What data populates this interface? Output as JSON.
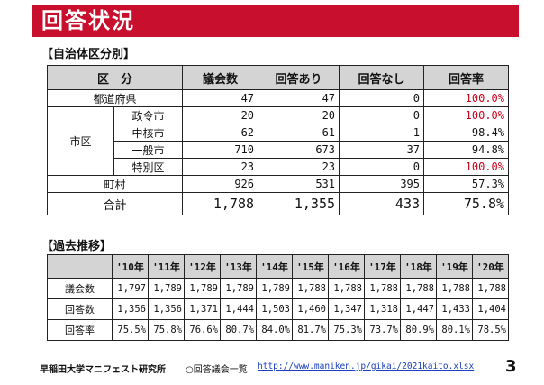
{
  "title": "回答状況",
  "section1": {
    "label": "【自治体区分別】",
    "headers": [
      "区　分",
      "議会数",
      "回答あり",
      "回答なし",
      "回答率"
    ],
    "rows": [
      {
        "group": "",
        "label": "都道府県",
        "councils": "47",
        "responded": "47",
        "no_response": "0",
        "rate": "100.0%",
        "highlight": true
      },
      {
        "group": "市区",
        "label": "政令市",
        "councils": "20",
        "responded": "20",
        "no_response": "0",
        "rate": "100.0%",
        "highlight": true
      },
      {
        "group": "",
        "label": "中核市",
        "councils": "62",
        "responded": "61",
        "no_response": "1",
        "rate": "98.4%",
        "highlight": false
      },
      {
        "group": "",
        "label": "一般市",
        "councils": "710",
        "responded": "673",
        "no_response": "37",
        "rate": "94.8%",
        "highlight": false
      },
      {
        "group": "",
        "label": "特別区",
        "councils": "23",
        "responded": "23",
        "no_response": "0",
        "rate": "100.0%",
        "highlight": true
      },
      {
        "group": "",
        "label": "町村",
        "councils": "926",
        "responded": "531",
        "no_response": "395",
        "rate": "57.3%",
        "highlight": false
      },
      {
        "group": "",
        "label": "合計",
        "councils": "1,788",
        "responded": "1,355",
        "no_response": "433",
        "rate": "75.8%",
        "highlight": false
      }
    ]
  },
  "section2": {
    "label": "【過去推移】",
    "years": [
      "'10年",
      "'11年",
      "'12年",
      "'13年",
      "'14年",
      "'15年",
      "'16年",
      "'17年",
      "'18年",
      "'19年",
      "'20年"
    ],
    "rows": [
      {
        "label": "議会数",
        "values": [
          "1,797",
          "1,789",
          "1,789",
          "1,789",
          "1,789",
          "1,788",
          "1,788",
          "1,788",
          "1,788",
          "1,788",
          "1,788"
        ]
      },
      {
        "label": "回答数",
        "values": [
          "1,356",
          "1,356",
          "1,371",
          "1,444",
          "1,503",
          "1,460",
          "1,347",
          "1,318",
          "1,447",
          "1,433",
          "1,404"
        ]
      },
      {
        "label": "回答率",
        "values": [
          "75.5%",
          "75.8%",
          "76.6%",
          "80.7%",
          "84.0%",
          "81.7%",
          "75.3%",
          "73.7%",
          "80.9%",
          "80.1%",
          "78.5%"
        ]
      }
    ]
  },
  "footer": {
    "org": "早稲田大学マニフェスト研究所",
    "note": "○回答議会一覧",
    "url": "http://www.maniken.jp/gikai/2021kaito.xlsx",
    "page": "3"
  },
  "colors": {
    "title_bar": "#c8102e",
    "highlight_rate": "#d0021b",
    "header_fill": "#d4d4d4",
    "link": "#1a3fbf"
  }
}
